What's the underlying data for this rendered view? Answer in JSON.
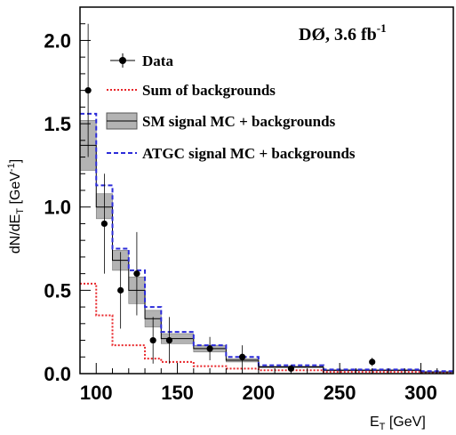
{
  "chart_data": {
    "type": "histogram",
    "experiment_label": "DØ, 3.6 fb",
    "experiment_label_sup": "-1",
    "xlabel": "E",
    "xlabel_sub": "T",
    "xlabel_unit": " [GeV]",
    "ylabel": "dN/dE",
    "ylabel_sub": "T",
    "ylabel_unit": " [GeV",
    "ylabel_unit_sup": "-1",
    "ylabel_unit_close": "]",
    "xlim": [
      90,
      320
    ],
    "ylim": [
      0,
      2.2
    ],
    "x_ticks": [
      "100",
      "150",
      "200",
      "250",
      "300"
    ],
    "x_tick_values": [
      100,
      150,
      200,
      250,
      300
    ],
    "y_ticks": [
      "0.0",
      "0.5",
      "1.0",
      "1.5",
      "2.0"
    ],
    "y_tick_values": [
      0,
      0.5,
      1.0,
      1.5,
      2.0
    ],
    "bin_edges": [
      90,
      100,
      110,
      120,
      130,
      140,
      160,
      180,
      200,
      240,
      300,
      320
    ],
    "series": [
      {
        "name": "Data",
        "style": "points",
        "color": "#000000",
        "x": [
          95,
          105,
          115,
          125,
          135,
          145,
          170,
          190,
          220,
          270
        ],
        "y": [
          1.7,
          0.9,
          0.5,
          0.6,
          0.2,
          0.2,
          0.15,
          0.1,
          0.03,
          0.07
        ],
        "yerr": [
          0.4,
          0.3,
          0.23,
          0.25,
          0.14,
          0.14,
          0.07,
          0.07,
          0.02,
          0.025
        ]
      },
      {
        "name": "Sum of backgrounds",
        "style": "dotted-step",
        "color": "#e8262a",
        "values": [
          0.54,
          0.35,
          0.17,
          0.17,
          0.09,
          0.07,
          0.045,
          0.03,
          0.02,
          0.01,
          0.005
        ]
      },
      {
        "name": "SM signal MC + backgrounds",
        "style": "band-step",
        "color": "#000000",
        "fill": "#b3b3b3",
        "values": [
          1.37,
          1.0,
          0.68,
          0.5,
          0.33,
          0.21,
          0.15,
          0.08,
          0.04,
          0.02,
          0.01
        ],
        "band_low": [
          1.22,
          0.93,
          0.62,
          0.42,
          0.28,
          0.18,
          0.13,
          0.07,
          0.035,
          0.017,
          0.008
        ],
        "band_high": [
          1.52,
          1.08,
          0.74,
          0.58,
          0.38,
          0.24,
          0.17,
          0.09,
          0.045,
          0.023,
          0.012
        ]
      },
      {
        "name": "ATGC signal MC + backgrounds",
        "style": "dashed-step",
        "color": "#2b2bd9",
        "values": [
          1.56,
          1.13,
          0.75,
          0.62,
          0.4,
          0.25,
          0.17,
          0.1,
          0.05,
          0.025,
          0.015
        ]
      }
    ],
    "legend_position": "top-right",
    "grid": false
  }
}
